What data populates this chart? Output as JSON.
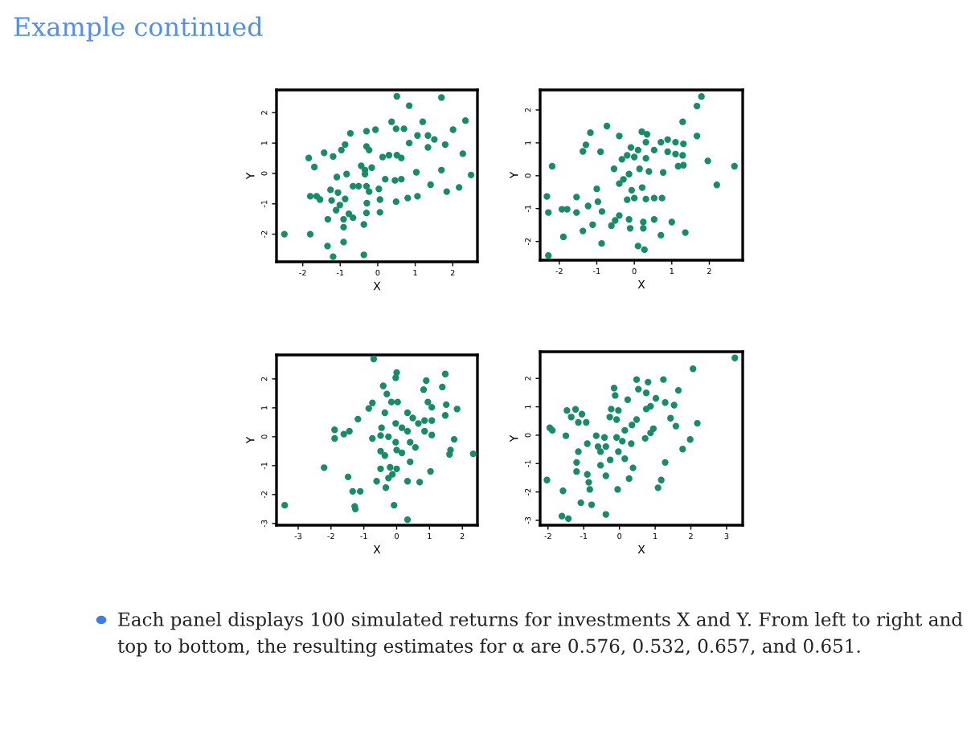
{
  "chart_data": [
    {
      "type": "scatter",
      "title": "Example continued",
      "annotations": [
        "Each panel displays 100 simulated returns for investments X and Y. From left to right and top to bottom, the resulting estimates for α are 0.576, 0.532, 0.657, and 0.651."
      ],
      "xlabel": "X",
      "ylabel": "Y",
      "marker": "circle",
      "grid": false,
      "xlim": [
        -2.7,
        2.66
      ],
      "ylim": [
        -2.91,
        2.75
      ],
      "xticks": [
        -2,
        -1,
        0,
        1,
        2
      ],
      "yticks": [
        -2,
        -1,
        0,
        1,
        2
      ],
      "series": [
        {
          "color": "#178c68",
          "x": [
            0.51,
            1.7,
            0.84,
            2.34,
            0.37,
            1.2,
            2.01,
            -0.3,
            -0.06,
            -0.73,
            0.49,
            0.7,
            1.06,
            1.34,
            1.51,
            1.8,
            0.84,
            1.34,
            -0.3,
            -0.23,
            -0.87,
            -0.97,
            -1.43,
            -1.19,
            -1.84,
            -1.69,
            0.13,
            0.3,
            0.51,
            0.63,
            2.27,
            -0.44,
            -0.34,
            -0.16,
            -1.09,
            -0.83,
            1.03,
            1.7,
            2.49,
            -0.34,
            0.2,
            0.46,
            0.63,
            -0.66,
            -0.51,
            -0.3,
            0.03,
            -0.23,
            1.41,
            1.84,
            2.17,
            -1.26,
            -1.06,
            -1.8,
            -1.63,
            -1.54,
            -1.23,
            -0.87,
            -1.01,
            -0.29,
            0.06,
            0.49,
            0.8,
            1.06,
            -1.11,
            -0.77,
            -0.66,
            -1.33,
            -0.91,
            -0.3,
            0.06,
            -0.91,
            -0.37,
            -2.49,
            -1.8,
            -0.91,
            -1.34,
            -1.19,
            -0.37
          ],
          "values": [
            2.54,
            2.5,
            2.23,
            1.74,
            1.7,
            1.7,
            1.44,
            1.39,
            1.44,
            1.32,
            1.47,
            1.47,
            1.25,
            1.25,
            1.12,
            0.95,
            1.0,
            0.86,
            0.89,
            0.77,
            0.95,
            0.77,
            0.68,
            0.56,
            0.51,
            0.21,
            0.54,
            0.6,
            0.6,
            0.51,
            0.65,
            0.25,
            0.11,
            0.19,
            -0.12,
            -0.02,
            0.04,
            0.11,
            -0.05,
            -0.02,
            -0.19,
            -0.23,
            -0.19,
            -0.42,
            -0.42,
            -0.42,
            -0.51,
            -0.6,
            -0.37,
            -0.6,
            -0.46,
            -0.54,
            -0.63,
            -0.75,
            -0.75,
            -0.86,
            -0.89,
            -0.84,
            -1.04,
            -0.98,
            -0.86,
            -0.93,
            -0.81,
            -0.75,
            -1.21,
            -1.33,
            -1.46,
            -1.51,
            -1.51,
            -1.3,
            -1.28,
            -1.77,
            -1.68,
            -2.0,
            -2.0,
            -2.26,
            -2.39,
            -2.74,
            -2.68
          ]
        }
      ]
    },
    {
      "type": "scatter",
      "xlabel": "X",
      "ylabel": "Y",
      "marker": "circle",
      "grid": false,
      "xlim": [
        -2.51,
        2.89
      ],
      "ylim": [
        -2.57,
        2.61
      ],
      "xticks": [
        -2,
        -1,
        0,
        1,
        2
      ],
      "yticks": [
        -2,
        -1,
        0,
        1,
        2
      ],
      "series": [
        {
          "color": "#178c68",
          "x": [
            1.79,
            1.67,
            -0.73,
            -1.17,
            1.29,
            0.2,
            0.34,
            -0.4,
            -1.29,
            -1.37,
            -0.9,
            1.67,
            0.89,
            1.1,
            1.31,
            -0.09,
            0.1,
            0.31,
            0.71,
            0.53,
            0.89,
            1.1,
            -0.19,
            0,
            0.31,
            -0.33,
            1.29,
            1.96,
            2.67,
            -2.19,
            1.17,
            1.31,
            0.14,
            0.39,
            0.77,
            -0.54,
            -0.14,
            -0.29,
            -0.4,
            2.2,
            0.21,
            -0.07,
            -1.0,
            -0.19,
            0,
            0.31,
            0.53,
            0.74,
            -2.33,
            -1.54,
            -2.29,
            -1.93,
            -1.79,
            -1.54,
            -1.23,
            -0.97,
            -0.86,
            -0.4,
            -0.51,
            -0.61,
            -0.14,
            0.24,
            0.53,
            1.0,
            -0.11,
            0.24,
            -1.11,
            -1.37,
            1.36,
            0.71,
            -1.89,
            -0.87,
            0.1,
            0.27,
            -2.29
          ],
          "values": [
            2.41,
            2.12,
            1.51,
            1.31,
            1.64,
            1.34,
            1.26,
            1.21,
            0.94,
            0.74,
            0.73,
            1.21,
            1.1,
            1.02,
            0.97,
            0.86,
            0.78,
            1.02,
            1.02,
            0.78,
            0.73,
            0.66,
            0.62,
            0.57,
            0.53,
            0.5,
            0.62,
            0.45,
            0.29,
            0.29,
            0.29,
            0.32,
            0.21,
            0.13,
            0.1,
            0.21,
            0.05,
            -0.11,
            -0.24,
            -0.28,
            -0.36,
            -0.44,
            -0.4,
            -0.73,
            -0.68,
            -0.71,
            -0.68,
            -0.68,
            -0.63,
            -0.65,
            -1.12,
            -1.02,
            -1.02,
            -1.12,
            -0.92,
            -0.79,
            -1.09,
            -1.21,
            -1.36,
            -1.52,
            -1.33,
            -1.41,
            -1.33,
            -1.41,
            -1.6,
            -1.6,
            -1.49,
            -1.68,
            -1.73,
            -1.81,
            -1.86,
            -2.06,
            -2.14,
            -2.25,
            -2.43
          ]
        }
      ]
    },
    {
      "type": "scatter",
      "xlabel": "X",
      "ylabel": "Y",
      "marker": "circle",
      "grid": false,
      "xlim": [
        -3.66,
        2.46
      ],
      "ylim": [
        -3.06,
        2.83
      ],
      "xticks": [
        -3,
        -2,
        -1,
        0,
        1,
        2
      ],
      "yticks": [
        -3,
        -2,
        -1,
        0,
        1,
        2
      ],
      "series": [
        {
          "color": "#178c68",
          "x": [
            -0.7,
            0,
            -0.03,
            1.48,
            0.9,
            1.39,
            -0.41,
            -0.3,
            0.82,
            -0.16,
            0.03,
            -0.74,
            -0.85,
            -1.18,
            0.95,
            1.07,
            1.51,
            1.84,
            1.48,
            -0.36,
            0.33,
            0.49,
            0.66,
            0.85,
            1.07,
            -1.89,
            -1.44,
            -1.61,
            -1.89,
            -0.46,
            -0.03,
            0.16,
            0.33,
            0.85,
            1.07,
            -0.74,
            -0.49,
            -0.25,
            -0.03,
            0.41,
            0.57,
            1.75,
            -0.49,
            -0.36,
            0,
            0.16,
            1.64,
            2.33,
            1.61,
            0.41,
            -2.21,
            -0.49,
            -0.2,
            0,
            1.03,
            -1.48,
            -0.61,
            -0.25,
            -0.13,
            0.33,
            0.7,
            -0.33,
            -1.34,
            -1.11,
            -1.28,
            -1.26,
            -3.41,
            -0.08,
            0.33
          ],
          "values": [
            2.69,
            2.22,
            2.04,
            2.17,
            1.94,
            1.72,
            1.76,
            1.48,
            1.63,
            1.2,
            1.2,
            1.17,
            0.98,
            0.61,
            1.2,
            1.02,
            1.11,
            0.96,
            0.74,
            0.83,
            0.83,
            0.65,
            0.46,
            0.56,
            0.56,
            0.24,
            0.19,
            0.09,
            -0.06,
            0.31,
            0.46,
            0.31,
            0.19,
            0.19,
            0.06,
            -0.06,
            0.04,
            0,
            -0.19,
            -0.19,
            -0.37,
            -0.09,
            -0.5,
            -0.65,
            -0.46,
            -0.56,
            -0.46,
            -0.59,
            -0.61,
            -0.87,
            -1.07,
            -1.11,
            -1.06,
            -1.11,
            -1.2,
            -1.39,
            -1.54,
            -1.43,
            -1.3,
            -1.54,
            -1.57,
            -1.76,
            -1.89,
            -1.89,
            -2.41,
            -2.5,
            -2.37,
            -2.37,
            -2.87
          ]
        }
      ]
    },
    {
      "type": "scatter",
      "xlabel": "X",
      "ylabel": "Y",
      "marker": "circle",
      "grid": false,
      "xlim": [
        -2.22,
        3.45
      ],
      "ylim": [
        -3.17,
        2.94
      ],
      "xticks": [
        -2,
        -1,
        0,
        1,
        2,
        3
      ],
      "yticks": [
        -3,
        -2,
        -1,
        0,
        1,
        2
      ],
      "series": [
        {
          "color": "#178c68",
          "x": [
            3.23,
            2.06,
            0.48,
            0.8,
            1.23,
            1.65,
            -0.15,
            -0.12,
            0.53,
            0.75,
            0.23,
            1.02,
            1.28,
            1.53,
            0.87,
            0.75,
            -1.47,
            -1.23,
            -1.05,
            -1.35,
            -1.15,
            -0.93,
            -0.23,
            -0.03,
            -0.27,
            -0.08,
            0.48,
            0.35,
            0.15,
            1.43,
            1.58,
            2.18,
            0.95,
            0.87,
            0.72,
            -1.95,
            -1.88,
            -1.5,
            -0.65,
            -0.42,
            -0.08,
            0.08,
            0.33,
            -0.9,
            -0.6,
            -0.38,
            1.98,
            1.77,
            -1.15,
            -0.53,
            -0.03,
            0.15,
            -0.26,
            -1.2,
            -0.53,
            1.28,
            -1.2,
            -0.9,
            -0.38,
            0.38,
            0.27,
            1.17,
            -2.03,
            -0.86,
            -0.83,
            -1.58,
            -0.05,
            1.08,
            -1.08,
            -0.78,
            -0.38,
            -1.61,
            -1.43
          ],
          "values": [
            2.72,
            2.34,
            1.96,
            1.87,
            1.96,
            1.58,
            1.66,
            1.4,
            1.62,
            1.49,
            1.25,
            1.3,
            1.15,
            1.06,
            1.02,
            0.92,
            0.87,
            0.91,
            0.74,
            0.64,
            0.45,
            0.45,
            0.92,
            0.87,
            0.64,
            0.55,
            0.55,
            0.36,
            0.17,
            0.6,
            0.32,
            0.42,
            0.23,
            0.08,
            -0.11,
            0.26,
            0.17,
            -0.02,
            -0.02,
            -0.08,
            -0.08,
            -0.21,
            -0.3,
            -0.3,
            -0.4,
            -0.4,
            -0.15,
            -0.49,
            -0.58,
            -0.58,
            -0.58,
            -0.83,
            -0.87,
            -0.96,
            -1.06,
            -0.96,
            -1.28,
            -1.38,
            -1.43,
            -1.15,
            -1.53,
            -1.58,
            -1.58,
            -1.66,
            -1.91,
            -1.96,
            -1.91,
            -1.85,
            -2.38,
            -2.45,
            -2.79,
            -2.85,
            -2.94
          ]
        }
      ]
    }
  ]
}
